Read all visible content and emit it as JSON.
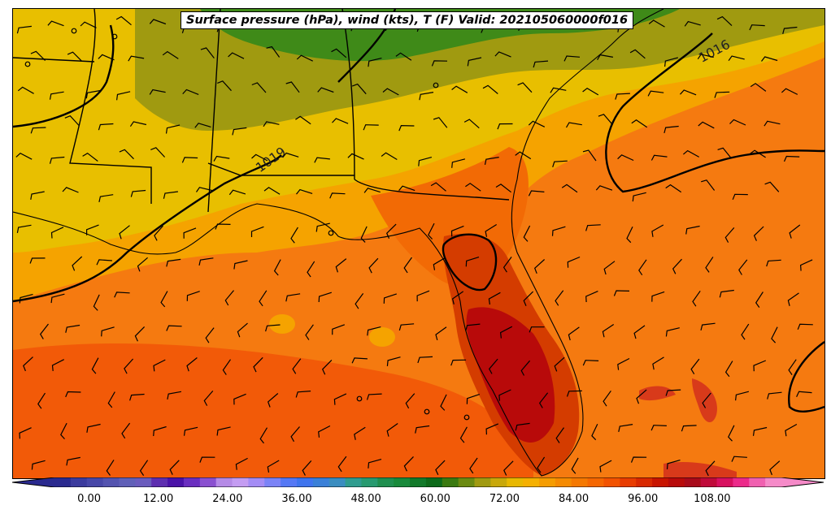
{
  "title": "Surface pressure (hPa), wind (kts), T (F) Valid: 202105060000f016",
  "contour_labels": [
    {
      "text": "1019"
    },
    {
      "text": "1016"
    }
  ],
  "colorbar": {
    "min": -6,
    "max": 120,
    "step": 3,
    "tick_labels": [
      "0.00",
      "12.00",
      "24.00",
      "36.00",
      "48.00",
      "60.00",
      "72.00",
      "84.00",
      "96.00",
      "108.00"
    ],
    "tick_values": [
      0,
      12,
      24,
      36,
      48,
      60,
      72,
      84,
      96,
      108
    ],
    "colors": [
      "#2a2a8f",
      "#3b3b9e",
      "#4747a8",
      "#5454b0",
      "#6060b8",
      "#6a5bbd",
      "#5d2eb0",
      "#4a12a8",
      "#6a2ec0",
      "#8a50d0",
      "#b58ae6",
      "#c49cf2",
      "#a48cf5",
      "#7b83f7",
      "#5578f5",
      "#3f74ee",
      "#3a80d8",
      "#3a8dc0",
      "#2f9c8f",
      "#279a70",
      "#1f8f4f",
      "#188a3b",
      "#127a2a",
      "#0d6b1a",
      "#3a7a10",
      "#6b8a10",
      "#a09a10",
      "#c8a80a",
      "#e8b800",
      "#f5b000",
      "#f59c00",
      "#f58a00",
      "#f57800",
      "#f56600",
      "#f25200",
      "#e83c00",
      "#d82800",
      "#c81400",
      "#b80a0a",
      "#a80a1a",
      "#c00a3a",
      "#d81060",
      "#ec2a8a",
      "#f060b0",
      "#f58ac8"
    ]
  },
  "map_colors": {
    "ocean_warm": "#f57a10",
    "south_gulf": "#f25a08",
    "land_mid": "#f5a300",
    "land_cool": "#e8bf00",
    "land_olive": "#a09a10",
    "land_green": "#3f8a18",
    "peninsula_hot": "#d43c00",
    "peninsula_core": "#b80a0a",
    "bahamas": "#d83a1a"
  }
}
